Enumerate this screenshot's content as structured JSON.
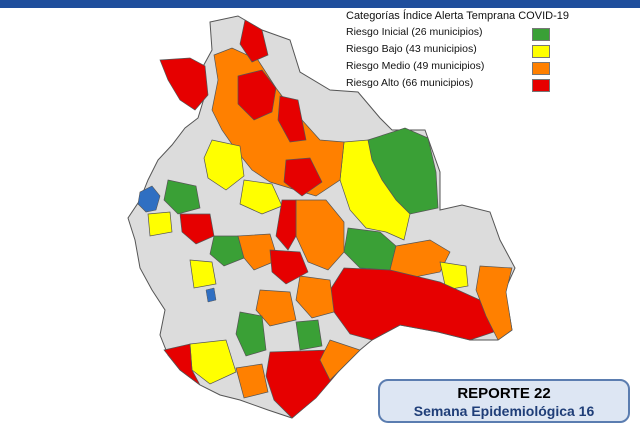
{
  "legend": {
    "title": "Categorías Índice Alerta Temprana COVID-19",
    "items": [
      {
        "label": "Riesgo Inicial (26 municipios)",
        "color": "#3aa036"
      },
      {
        "label": "Riesgo Bajo (43 municipios)",
        "color": "#ffff00"
      },
      {
        "label": "Riesgo Medio (49 municipios)",
        "color": "#ff8000"
      },
      {
        "label": "Riesgo Alto (66 municipios)",
        "color": "#e60000"
      }
    ]
  },
  "report": {
    "title": "REPORTE 22",
    "subtitle": "Semana Epidemiológica 16"
  },
  "colors": {
    "accent_strip": "#1f4e9c",
    "no_data": "#dcdcdc",
    "border": "#555555",
    "lake": "#2f6fc2"
  }
}
